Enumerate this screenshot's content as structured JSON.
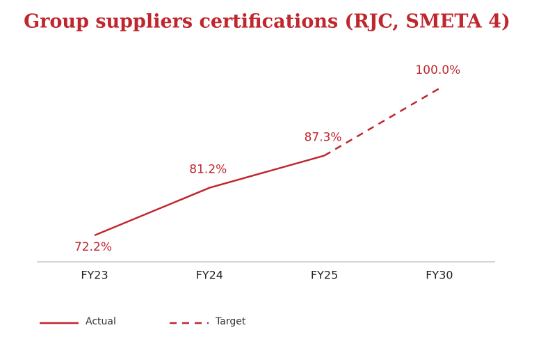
{
  "chart_data": {
    "type": "line",
    "title": "Group suppliers certifications (RJC, SMETA 4)",
    "categories": [
      "FY23",
      "FY24",
      "FY25",
      "FY30"
    ],
    "series": [
      {
        "name": "Actual",
        "color": "#c0262d",
        "dash": false,
        "values": [
          72.2,
          81.2,
          87.3,
          null
        ],
        "value_labels": [
          "72.2%",
          "81.2%",
          "87.3%",
          null
        ]
      },
      {
        "name": "Target",
        "color": "#c0262d",
        "dash": true,
        "values": [
          null,
          null,
          87.3,
          100.0
        ],
        "value_labels": [
          null,
          null,
          null,
          "100.0%"
        ]
      }
    ]
  }
}
